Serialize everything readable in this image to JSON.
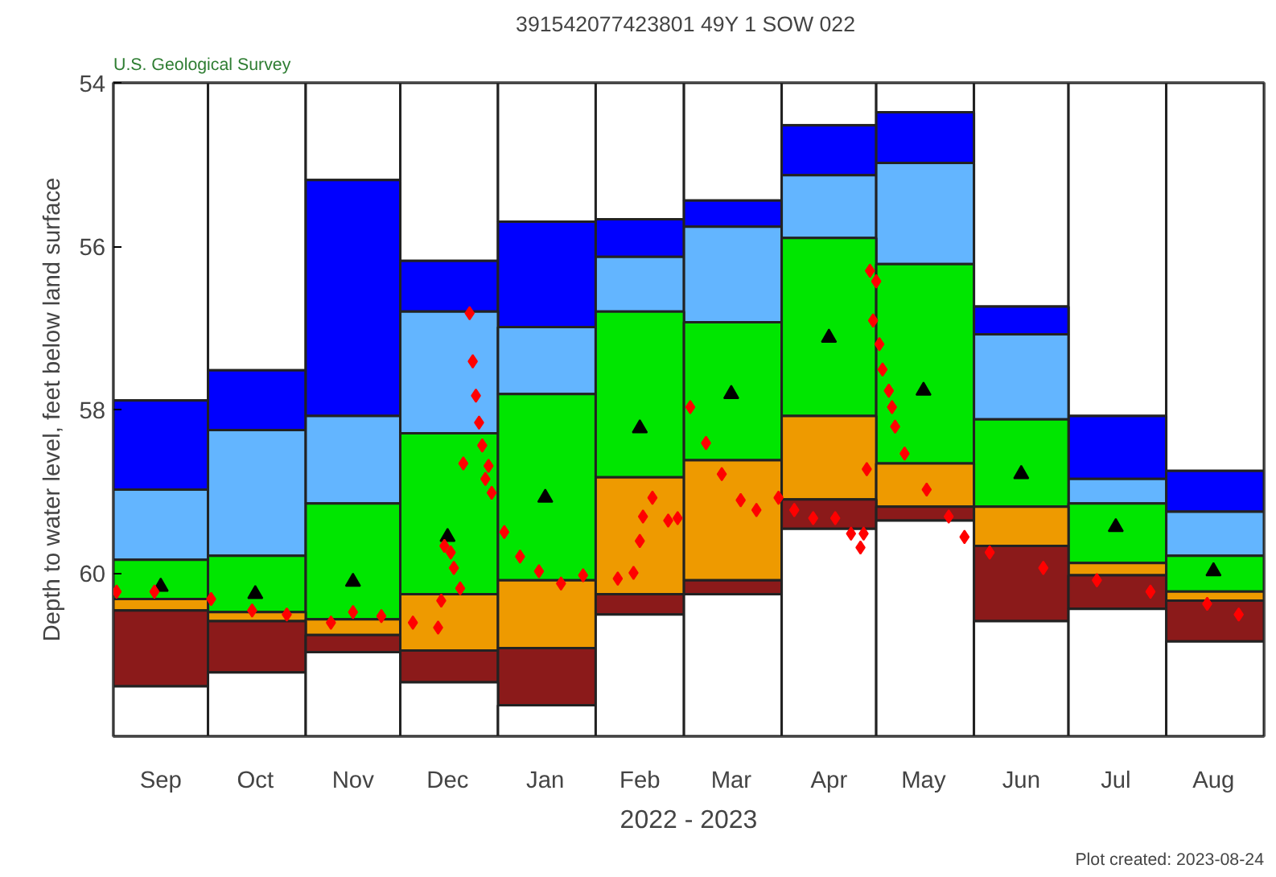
{
  "chart_data": {
    "type": "bar",
    "title": "391542077423801 49Y  1 SOW 022",
    "subtitle": "U.S. Geological Survey",
    "xlabel": "2022 - 2023",
    "ylabel": "Depth to water level, feet below land surface",
    "annotations": [
      "Plot created: 2023-08-24"
    ],
    "x": [
      "2022-09-16",
      "2022-10-16",
      "2022-11-16",
      "2022-12-16",
      "2023-01-16",
      "2023-02-15",
      "2023-03-16",
      "2023-04-16",
      "2023-05-16",
      "2023-06-16",
      "2023-07-16",
      "2023-08-16"
    ],
    "xlim": [
      "2022-09-01",
      "2023-09-01"
    ],
    "xticks": [
      {
        "value": "2022-09-16",
        "label": "Sep"
      },
      {
        "value": "2022-10-16",
        "label": "Oct"
      },
      {
        "value": "2022-11-16",
        "label": "Nov"
      },
      {
        "value": "2022-12-16",
        "label": "Dec"
      },
      {
        "value": "2023-01-16",
        "label": "Jan"
      },
      {
        "value": "2023-02-15",
        "label": "Feb"
      },
      {
        "value": "2023-03-16",
        "label": "Mar"
      },
      {
        "value": "2023-04-16",
        "label": "Apr"
      },
      {
        "value": "2023-05-16",
        "label": "May"
      },
      {
        "value": "2023-06-16",
        "label": "Jun"
      },
      {
        "value": "2023-07-16",
        "label": "Jul"
      },
      {
        "value": "2023-08-16",
        "label": "Aug"
      }
    ],
    "ylim": [
      62,
      54
    ],
    "yticks": [
      54,
      56,
      58,
      60
    ],
    "series": [
      {
        "color": "#ffffff",
        "base": [
          54,
          54,
          54,
          54,
          54,
          54,
          54,
          54,
          54,
          54,
          54,
          54
        ],
        "values": [
          3.89,
          3.52,
          1.19,
          2.18,
          1.7,
          1.67,
          1.44,
          0.52,
          0.36,
          2.74,
          4.08,
          4.75
        ]
      },
      {
        "color": "#0000ff",
        "base": [
          57.89,
          57.52,
          55.19,
          56.18,
          55.7,
          55.67,
          55.44,
          54.52,
          54.36,
          56.74,
          58.08,
          58.75
        ],
        "values": [
          1.09,
          0.73,
          2.89,
          0.62,
          1.29,
          0.46,
          0.32,
          0.61,
          0.62,
          0.34,
          0.77,
          0.5
        ]
      },
      {
        "color": "#63b5ff",
        "base": [
          58.98,
          58.25,
          58.08,
          56.8,
          56.99,
          56.13,
          55.76,
          55.13,
          54.98,
          57.08,
          58.85,
          59.25
        ],
        "values": [
          0.86,
          1.54,
          1.07,
          1.49,
          0.82,
          0.67,
          1.17,
          0.77,
          1.24,
          1.04,
          0.3,
          0.54
        ]
      },
      {
        "color": "#00e600",
        "base": [
          59.84,
          59.79,
          59.15,
          58.29,
          57.81,
          56.8,
          56.93,
          55.9,
          56.22,
          58.12,
          59.15,
          59.79
        ],
        "values": [
          0.48,
          0.69,
          1.42,
          1.97,
          2.28,
          2.03,
          1.69,
          2.18,
          2.44,
          1.07,
          0.73,
          0.44
        ]
      },
      {
        "color": "#ee9a00",
        "base": [
          60.32,
          60.48,
          60.57,
          60.26,
          60.09,
          58.83,
          58.62,
          58.08,
          58.66,
          59.19,
          59.88,
          60.23
        ],
        "values": [
          0.14,
          0.11,
          0.19,
          0.69,
          0.83,
          1.43,
          1.47,
          1.02,
          0.53,
          0.48,
          0.15,
          0.11
        ]
      },
      {
        "color": "#8b1a1a",
        "base": [
          60.46,
          60.59,
          60.76,
          60.95,
          60.92,
          60.26,
          60.09,
          59.1,
          59.19,
          59.67,
          60.03,
          60.34
        ],
        "values": [
          0.93,
          0.63,
          0.21,
          0.39,
          0.7,
          0.25,
          0.17,
          0.36,
          0.17,
          0.92,
          0.41,
          0.5
        ]
      },
      {
        "color": "#ffffff",
        "base": [
          61.39,
          61.22,
          60.97,
          61.34,
          61.62,
          60.51,
          60.26,
          59.46,
          59.36,
          60.59,
          60.44,
          60.84
        ],
        "values": [
          0.61,
          0.78,
          1.03,
          0.66,
          0.38,
          1.49,
          1.74,
          2.54,
          2.64,
          1.41,
          1.56,
          1.16
        ]
      },
      {
        "type": "scatter",
        "marker": "triangle",
        "color": "#000000",
        "values": [
          60.17,
          60.26,
          60.11,
          59.56,
          59.08,
          58.23,
          57.81,
          57.12,
          57.77,
          58.79,
          59.44,
          59.98
        ]
      },
      {
        "type": "scatter",
        "marker": "diamond",
        "color": "#ff0000",
        "x": [
          "2022-09-02",
          "2022-09-14",
          "2022-10-02",
          "2022-10-15",
          "2022-10-26",
          "2022-11-09",
          "2022-11-16",
          "2022-11-25",
          "2022-12-05",
          "2022-12-13",
          "2022-12-14",
          "2022-12-15",
          "2022-12-17",
          "2022-12-18",
          "2022-12-20",
          "2022-12-21",
          "2022-12-23",
          "2022-12-24",
          "2022-12-25",
          "2022-12-26",
          "2022-12-27",
          "2022-12-28",
          "2022-12-29",
          "2022-12-30",
          "2023-01-03",
          "2023-01-08",
          "2023-01-14",
          "2023-01-21",
          "2023-01-28",
          "2023-02-08",
          "2023-02-13",
          "2023-02-15",
          "2023-02-16",
          "2023-02-19",
          "2023-02-24",
          "2023-02-27",
          "2023-03-03",
          "2023-03-08",
          "2023-03-13",
          "2023-03-19",
          "2023-03-24",
          "2023-03-31",
          "2023-04-05",
          "2023-04-11",
          "2023-04-18",
          "2023-04-23",
          "2023-04-26",
          "2023-04-27",
          "2023-04-28",
          "2023-04-29",
          "2023-04-30",
          "2023-05-01",
          "2023-05-02",
          "2023-05-03",
          "2023-05-05",
          "2023-05-06",
          "2023-05-07",
          "2023-05-10",
          "2023-05-17",
          "2023-05-24",
          "2023-05-29",
          "2023-06-06",
          "2023-06-23",
          "2023-07-10",
          "2023-07-27",
          "2023-08-14",
          "2023-08-24"
        ],
        "values": [
          60.23,
          60.23,
          60.32,
          60.46,
          60.51,
          60.61,
          60.48,
          60.53,
          60.61,
          60.67,
          60.34,
          59.67,
          59.75,
          59.94,
          60.19,
          58.66,
          56.82,
          57.41,
          57.83,
          58.16,
          58.44,
          58.85,
          58.69,
          59.02,
          59.5,
          59.8,
          59.98,
          60.13,
          60.03,
          60.07,
          60.0,
          59.61,
          59.31,
          59.08,
          59.36,
          59.33,
          57.97,
          58.41,
          58.79,
          59.11,
          59.23,
          59.08,
          59.23,
          59.33,
          59.33,
          59.52,
          59.69,
          59.52,
          58.73,
          56.3,
          56.91,
          56.43,
          57.2,
          57.51,
          57.77,
          57.97,
          58.21,
          58.54,
          58.98,
          59.31,
          59.56,
          59.75,
          59.94,
          60.09,
          60.23,
          60.38,
          60.51
        ]
      }
    ]
  }
}
